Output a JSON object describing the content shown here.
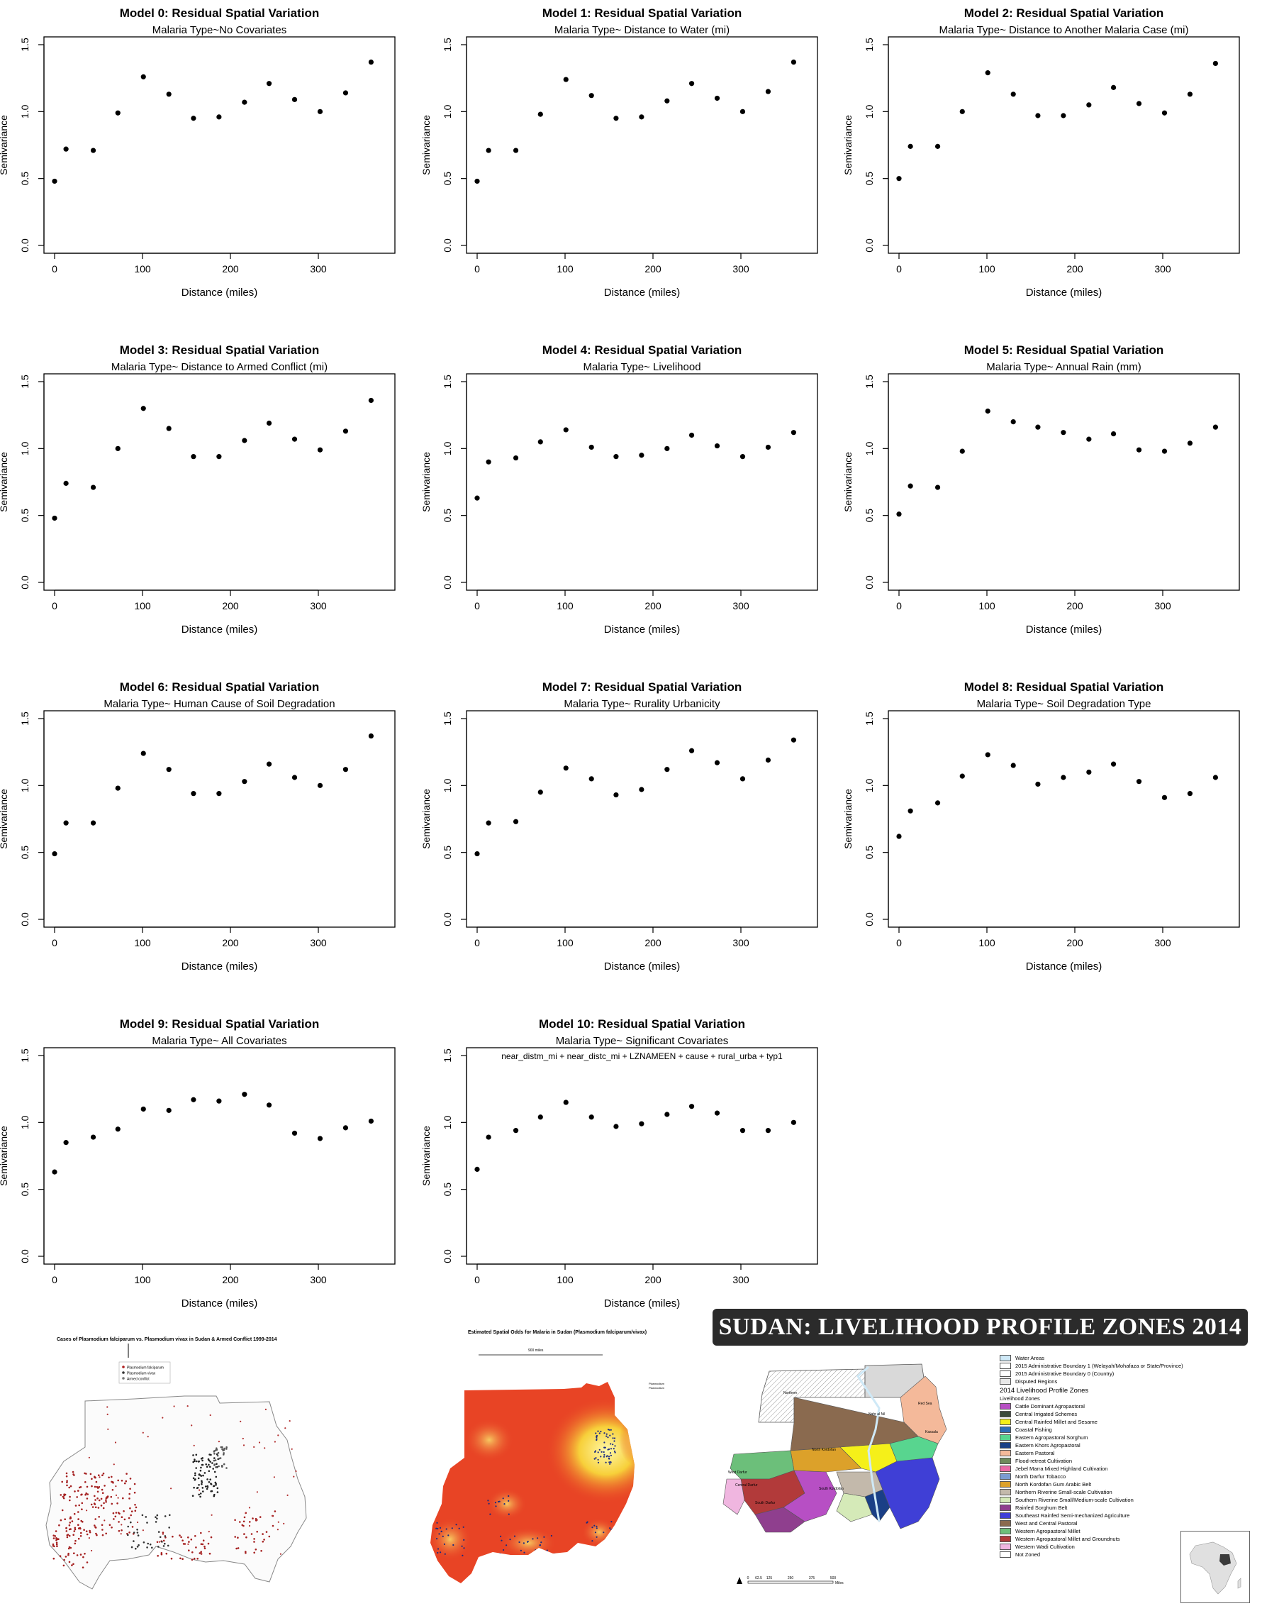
{
  "chart_data": [
    {
      "type": "scatter",
      "title": "Model 0: Residual Spatial Variation",
      "subtitle": "Malaria Type~No Covariates",
      "note": "",
      "xlabel": "Distance (miles)",
      "ylabel": "Semivariance",
      "xlim": [
        0,
        375
      ],
      "ylim": [
        0,
        1.5
      ],
      "xticks": [
        "0",
        "100",
        "200",
        "300"
      ],
      "yticks": [
        "0.0",
        "0.5",
        "1.0",
        "1.5"
      ],
      "x": [
        0,
        13,
        44,
        72,
        101,
        130,
        158,
        187,
        216,
        244,
        273,
        302,
        331,
        360
      ],
      "y": [
        0.48,
        0.72,
        0.71,
        0.99,
        1.26,
        1.13,
        0.95,
        0.96,
        1.07,
        1.21,
        1.09,
        1.0,
        1.14,
        1.37
      ]
    },
    {
      "type": "scatter",
      "title": "Model 1: Residual Spatial Variation",
      "subtitle": "Malaria Type~ Distance to Water (mi)",
      "note": "",
      "xlabel": "Distance (miles)",
      "ylabel": "Semivariance",
      "xlim": [
        0,
        375
      ],
      "ylim": [
        0,
        1.5
      ],
      "xticks": [
        "0",
        "100",
        "200",
        "300"
      ],
      "yticks": [
        "0.0",
        "0.5",
        "1.0",
        "1.5"
      ],
      "x": [
        0,
        13,
        44,
        72,
        101,
        130,
        158,
        187,
        216,
        244,
        273,
        302,
        331,
        360
      ],
      "y": [
        0.48,
        0.71,
        0.71,
        0.98,
        1.24,
        1.12,
        0.95,
        0.96,
        1.08,
        1.21,
        1.1,
        1.0,
        1.15,
        1.37
      ]
    },
    {
      "type": "scatter",
      "title": "Model 2: Residual Spatial Variation",
      "subtitle": "Malaria Type~ Distance to Another Malaria Case (mi)",
      "note": "",
      "xlabel": "Distance (miles)",
      "ylabel": "Semivariance",
      "xlim": [
        0,
        375
      ],
      "ylim": [
        0,
        1.5
      ],
      "xticks": [
        "0",
        "100",
        "200",
        "300"
      ],
      "yticks": [
        "0.0",
        "0.5",
        "1.0",
        "1.5"
      ],
      "x": [
        0,
        13,
        44,
        72,
        101,
        130,
        158,
        187,
        216,
        244,
        273,
        302,
        331,
        360
      ],
      "y": [
        0.5,
        0.74,
        0.74,
        1.0,
        1.29,
        1.13,
        0.97,
        0.97,
        1.05,
        1.18,
        1.06,
        0.99,
        1.13,
        1.36
      ]
    },
    {
      "type": "scatter",
      "title": "Model 3: Residual Spatial Variation",
      "subtitle": "Malaria Type~ Distance to Armed Conflict (mi)",
      "note": "",
      "xlabel": "Distance (miles)",
      "ylabel": "Semivariance",
      "xlim": [
        0,
        375
      ],
      "ylim": [
        0,
        1.5
      ],
      "xticks": [
        "0",
        "100",
        "200",
        "300"
      ],
      "yticks": [
        "0.0",
        "0.5",
        "1.0",
        "1.5"
      ],
      "x": [
        0,
        13,
        44,
        72,
        101,
        130,
        158,
        187,
        216,
        244,
        273,
        302,
        331,
        360
      ],
      "y": [
        0.48,
        0.74,
        0.71,
        1.0,
        1.3,
        1.15,
        0.94,
        0.94,
        1.06,
        1.19,
        1.07,
        0.99,
        1.13,
        1.36
      ]
    },
    {
      "type": "scatter",
      "title": "Model 4: Residual Spatial Variation",
      "subtitle": "Malaria Type~ Livelihood",
      "note": "",
      "xlabel": "Distance (miles)",
      "ylabel": "Semivariance",
      "xlim": [
        0,
        375
      ],
      "ylim": [
        0,
        1.5
      ],
      "xticks": [
        "0",
        "100",
        "200",
        "300"
      ],
      "yticks": [
        "0.0",
        "0.5",
        "1.0",
        "1.5"
      ],
      "x": [
        0,
        13,
        44,
        72,
        101,
        130,
        158,
        187,
        216,
        244,
        273,
        302,
        331,
        360
      ],
      "y": [
        0.63,
        0.9,
        0.93,
        1.05,
        1.14,
        1.01,
        0.94,
        0.95,
        1.0,
        1.1,
        1.02,
        0.94,
        1.01,
        1.12
      ]
    },
    {
      "type": "scatter",
      "title": "Model 5: Residual Spatial Variation",
      "subtitle": "Malaria Type~ Annual Rain (mm)",
      "note": "",
      "xlabel": "Distance (miles)",
      "ylabel": "Semivariance",
      "xlim": [
        0,
        375
      ],
      "ylim": [
        0,
        1.5
      ],
      "xticks": [
        "0",
        "100",
        "200",
        "300"
      ],
      "yticks": [
        "0.0",
        "0.5",
        "1.0",
        "1.5"
      ],
      "x": [
        0,
        13,
        44,
        72,
        101,
        130,
        158,
        187,
        216,
        244,
        273,
        302,
        331,
        360
      ],
      "y": [
        0.51,
        0.72,
        0.71,
        0.98,
        1.28,
        1.2,
        1.16,
        1.12,
        1.07,
        1.11,
        0.99,
        0.98,
        1.04,
        1.16
      ]
    },
    {
      "type": "scatter",
      "title": "Model 6: Residual Spatial Variation",
      "subtitle": "Malaria Type~ Human Cause of Soil Degradation",
      "note": "",
      "xlabel": "Distance (miles)",
      "ylabel": "Semivariance",
      "xlim": [
        0,
        375
      ],
      "ylim": [
        0,
        1.5
      ],
      "xticks": [
        "0",
        "100",
        "200",
        "300"
      ],
      "yticks": [
        "0.0",
        "0.5",
        "1.0",
        "1.5"
      ],
      "x": [
        0,
        13,
        44,
        72,
        101,
        130,
        158,
        187,
        216,
        244,
        273,
        302,
        331,
        360
      ],
      "y": [
        0.49,
        0.72,
        0.72,
        0.98,
        1.24,
        1.12,
        0.94,
        0.94,
        1.03,
        1.16,
        1.06,
        1.0,
        1.12,
        1.37
      ]
    },
    {
      "type": "scatter",
      "title": "Model 7: Residual Spatial Variation",
      "subtitle": "Malaria Type~ Rurality Urbanicity",
      "note": "",
      "xlabel": "Distance (miles)",
      "ylabel": "Semivariance",
      "xlim": [
        0,
        375
      ],
      "ylim": [
        0,
        1.5
      ],
      "xticks": [
        "0",
        "100",
        "200",
        "300"
      ],
      "yticks": [
        "0.0",
        "0.5",
        "1.0",
        "1.5"
      ],
      "x": [
        0,
        13,
        44,
        72,
        101,
        130,
        158,
        187,
        216,
        244,
        273,
        302,
        331,
        360
      ],
      "y": [
        0.49,
        0.72,
        0.73,
        0.95,
        1.13,
        1.05,
        0.93,
        0.97,
        1.12,
        1.26,
        1.17,
        1.05,
        1.19,
        1.34
      ]
    },
    {
      "type": "scatter",
      "title": "Model 8: Residual Spatial Variation",
      "subtitle": "Malaria Type~ Soil Degradation Type",
      "note": "",
      "xlabel": "Distance (miles)",
      "ylabel": "Semivariance",
      "xlim": [
        0,
        375
      ],
      "ylim": [
        0,
        1.5
      ],
      "xticks": [
        "0",
        "100",
        "200",
        "300"
      ],
      "yticks": [
        "0.0",
        "0.5",
        "1.0",
        "1.5"
      ],
      "x": [
        0,
        13,
        44,
        72,
        101,
        130,
        158,
        187,
        216,
        244,
        273,
        302,
        331,
        360
      ],
      "y": [
        0.62,
        0.81,
        0.87,
        1.07,
        1.23,
        1.15,
        1.01,
        1.06,
        1.1,
        1.16,
        1.03,
        0.91,
        0.94,
        1.06
      ]
    },
    {
      "type": "scatter",
      "title": "Model 9: Residual Spatial Variation",
      "subtitle": "Malaria Type~ All Covariates",
      "note": "",
      "xlabel": "Distance (miles)",
      "ylabel": "Semivariance",
      "xlim": [
        0,
        375
      ],
      "ylim": [
        0,
        1.5
      ],
      "xticks": [
        "0",
        "100",
        "200",
        "300"
      ],
      "yticks": [
        "0.0",
        "0.5",
        "1.0",
        "1.5"
      ],
      "x": [
        0,
        13,
        44,
        72,
        101,
        130,
        158,
        187,
        216,
        244,
        273,
        302,
        331,
        360
      ],
      "y": [
        0.63,
        0.85,
        0.89,
        0.95,
        1.1,
        1.09,
        1.17,
        1.16,
        1.21,
        1.13,
        0.92,
        0.88,
        0.96,
        1.01
      ]
    },
    {
      "type": "scatter",
      "title": "Model 10: Residual Spatial Variation",
      "subtitle": "Malaria Type~ Significant Covariates",
      "note": "near_distm_mi +  near_distc_mi +  LZNAMEEN +  cause +  rural_urba  +  typ1",
      "xlabel": "Distance (miles)",
      "ylabel": "Semivariance",
      "xlim": [
        0,
        375
      ],
      "ylim": [
        0,
        1.5
      ],
      "xticks": [
        "0",
        "100",
        "200",
        "300"
      ],
      "yticks": [
        "0.0",
        "0.5",
        "1.0",
        "1.5"
      ],
      "x": [
        0,
        13,
        44,
        72,
        101,
        130,
        158,
        187,
        216,
        244,
        273,
        302,
        331,
        360
      ],
      "y": [
        0.65,
        0.89,
        0.94,
        1.04,
        1.15,
        1.04,
        0.97,
        0.99,
        1.06,
        1.12,
        1.07,
        0.94,
        0.94,
        1.0
      ]
    }
  ],
  "maps": {
    "map1": {
      "title": "Cases of Plasmodium falciparum vs. Plasmodium vivax in Sudan & Armed Conflict 1999-2014",
      "legend": [
        "Plasmodium falciparum",
        "Plasmodium vivax",
        "Armed conflict"
      ]
    },
    "map2": {
      "title": "Estimated Spatial Odds for Malaria in Sudan (Plasmodium falciparum/vivax)",
      "scale_label": "900     miles",
      "legend": [
        "Plasmodium",
        "Plasmodium"
      ]
    },
    "map3": {
      "banner": "SUDAN: LIVELIHOOD PROFILE ZONES 2014",
      "base_legend": [
        {
          "label": "Water Areas",
          "color": "#cfe9f7"
        },
        {
          "label": "2015 Administrative Boundary 1 (Welayah/Mohafaza or State/Province)",
          "color": "#ffffff"
        },
        {
          "label": "2015 Administrative Boundary 0 (Country)",
          "color": "#ffffff"
        },
        {
          "label": "Disputed Regions",
          "color": "#e8e8e8"
        }
      ],
      "legend_title": "2014 Livelihood Profile Zones",
      "zones_title": "Livelihood Zones",
      "zones": [
        {
          "label": "Cattle Dominant Agropastoral",
          "color": "#b74fc4"
        },
        {
          "label": "Central Irrigated Schemes",
          "color": "#3a4a3a"
        },
        {
          "label": "Central Rainfed Millet and Sesame",
          "color": "#f5f019"
        },
        {
          "label": "Coastal Fishing",
          "color": "#2f6fb5"
        },
        {
          "label": "Eastern Agropastoral Sorghum",
          "color": "#58d58f"
        },
        {
          "label": "Eastern Khors Agropastoral",
          "color": "#1a3f86"
        },
        {
          "label": "Eastern Pastoral",
          "color": "#f4b99a"
        },
        {
          "label": "Flood-retreat Cultivation",
          "color": "#6e8b5c"
        },
        {
          "label": "Jebel Marra Mixed Highland Cultivation",
          "color": "#e86aa6"
        },
        {
          "label": "North Darfur Tobacco",
          "color": "#7b9bd1"
        },
        {
          "label": "North Kordofan Gum Arabic Belt",
          "color": "#dca12a"
        },
        {
          "label": "Northern Riverine Small-scale Cultivation",
          "color": "#c3b9ab"
        },
        {
          "label": "Southern Riverine Small/Medium-scale Cultivation",
          "color": "#d5eab8"
        },
        {
          "label": "Rainfed Sorghum Belt",
          "color": "#8f3f8e"
        },
        {
          "label": "Southeast Rainfed Semi-mechanized Agriculture",
          "color": "#3f3fd6"
        },
        {
          "label": "West and Central Pastoral",
          "color": "#8a6a4f"
        },
        {
          "label": "Western Agropastoral Millet",
          "color": "#6cbf7a"
        },
        {
          "label": "Western Agropastoral Millet and Groundnuts",
          "color": "#b23a3a"
        },
        {
          "label": "Western Wadi Cultivation",
          "color": "#f0b6e0"
        },
        {
          "label": "Not Zoned",
          "color": "#ffffff"
        }
      ],
      "scale_ticks": [
        "0",
        "62.5",
        "125",
        "250",
        "375",
        "500"
      ],
      "scale_unit": "Miles",
      "map_labels": [
        "Northern",
        "Red Sea",
        "North Kordofan",
        "South Kordofan",
        "South Darfur",
        "Central Darfur",
        "West Darfur",
        "Nahr al Nil",
        "Kassala"
      ]
    }
  }
}
